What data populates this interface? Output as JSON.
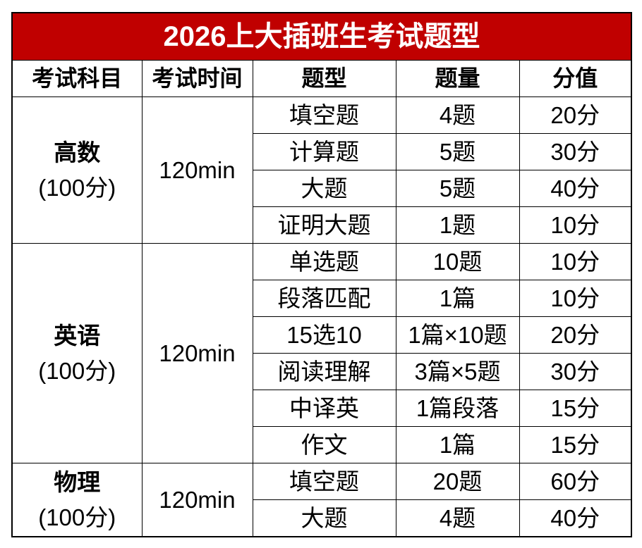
{
  "title": "2026上大插班生考试题型",
  "headers": [
    "考试科目",
    "考试时间",
    "题型",
    "题量",
    "分值"
  ],
  "groups": [
    {
      "subject": "高数",
      "score": "(100分)",
      "time": "120min",
      "rows": [
        [
          "填空题",
          "4题",
          "20分"
        ],
        [
          "计算题",
          "5题",
          "30分"
        ],
        [
          "大题",
          "5题",
          "40分"
        ],
        [
          "证明大题",
          "1题",
          "10分"
        ]
      ]
    },
    {
      "subject": "英语",
      "score": "(100分)",
      "time": "120min",
      "rows": [
        [
          "单选题",
          "10题",
          "10分"
        ],
        [
          "段落匹配",
          "1篇",
          "10分"
        ],
        [
          "15选10",
          "1篇×10题",
          "20分"
        ],
        [
          "阅读理解",
          "3篇×5题",
          "30分"
        ],
        [
          "中译英",
          "1篇段落",
          "15分"
        ],
        [
          "作文",
          "1篇",
          "15分"
        ]
      ]
    },
    {
      "subject": "物理",
      "score": "(100分)",
      "time": "120min",
      "rows": [
        [
          "填空题",
          "20题",
          "60分"
        ],
        [
          "大题",
          "4题",
          "40分"
        ]
      ]
    }
  ]
}
